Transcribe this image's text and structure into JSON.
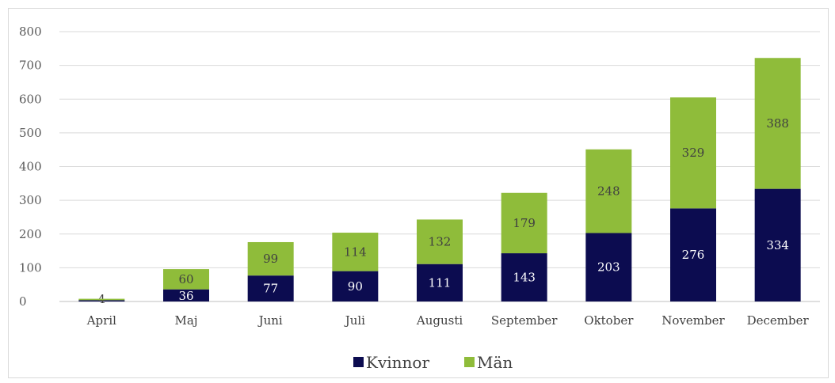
{
  "chart_data": {
    "type": "bar",
    "stacked": true,
    "categories": [
      "April",
      "Maj",
      "Juni",
      "Juli",
      "Augusti",
      "September",
      "Oktober",
      "November",
      "December"
    ],
    "series": [
      {
        "name": "Kvinnor",
        "color": "#0c0c50",
        "values": [
          4,
          36,
          77,
          90,
          111,
          143,
          203,
          276,
          334
        ]
      },
      {
        "name": "Män",
        "color": "#8fbc3a",
        "values": [
          4,
          60,
          99,
          114,
          132,
          179,
          248,
          329,
          388
        ]
      }
    ],
    "data_labels": [
      [
        "4",
        "36",
        "77",
        "90",
        "111",
        "143",
        "203",
        "276",
        "334"
      ],
      [
        "",
        "60",
        "99",
        "114",
        "132",
        "179",
        "248",
        "329",
        "388"
      ]
    ],
    "ylim": [
      0,
      800
    ],
    "yticks": [
      0,
      100,
      200,
      300,
      400,
      500,
      600,
      700,
      800
    ],
    "grid": true,
    "legend_position": "bottom",
    "title": "",
    "xlabel": "",
    "ylabel": ""
  }
}
